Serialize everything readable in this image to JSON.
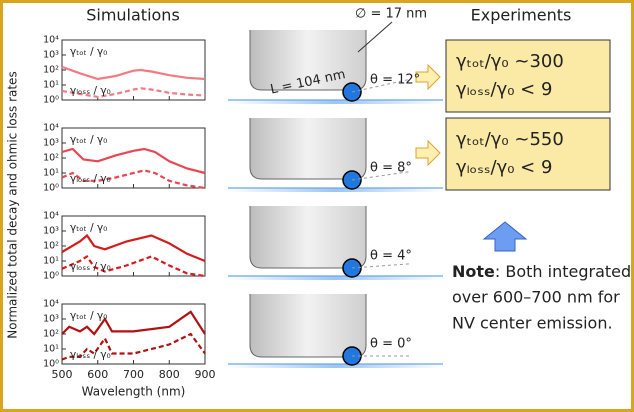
{
  "figure": {
    "left_title": "Simulations",
    "right_title": "Experiments",
    "ylabel": "Normalized total decay and ohmic loss rates"
  },
  "chart_data": [
    {
      "type": "line",
      "log_y": true,
      "xlim": [
        500,
        900
      ],
      "xticks": [
        500,
        600,
        700,
        800,
        900
      ],
      "ylim": [
        1,
        10000
      ],
      "yticks": [
        {
          "value": 1,
          "label": "10⁰"
        },
        {
          "value": 10,
          "label": "10¹"
        },
        {
          "value": 100,
          "label": "10²"
        },
        {
          "value": 1000,
          "label": "10³"
        },
        {
          "value": 10000,
          "label": "10⁴"
        }
      ],
      "x": [
        500,
        550,
        600,
        650,
        700,
        720,
        750,
        800,
        850,
        900
      ],
      "series": [
        {
          "name": "γₜₒₜ / γ₀",
          "color": "#f27a84",
          "linestyle": "solid",
          "values": [
            160,
            60,
            25,
            40,
            90,
            100,
            80,
            45,
            30,
            25
          ]
        },
        {
          "name": "γₗₒₛₛ / γ₀",
          "color": "#f27a84",
          "linestyle": "dashed",
          "values": [
            4,
            2.5,
            1.6,
            2.5,
            5,
            6,
            5,
            3,
            2.3,
            2
          ]
        }
      ]
    },
    {
      "type": "line",
      "log_y": true,
      "xlim": [
        500,
        900
      ],
      "xticks": [
        500,
        600,
        700,
        800,
        900
      ],
      "ylim": [
        1,
        10000
      ],
      "yticks": [
        {
          "value": 1,
          "label": "10⁰"
        },
        {
          "value": 10,
          "label": "10¹"
        },
        {
          "value": 100,
          "label": "10²"
        },
        {
          "value": 1000,
          "label": "10³"
        },
        {
          "value": 10000,
          "label": "10⁴"
        }
      ],
      "x": [
        500,
        530,
        560,
        600,
        650,
        700,
        730,
        760,
        800,
        850,
        900
      ],
      "series": [
        {
          "name": "γₜₒₜ / γ₀",
          "color": "#e84652",
          "linestyle": "solid",
          "values": [
            250,
            400,
            80,
            60,
            150,
            300,
            400,
            250,
            60,
            20,
            10
          ]
        },
        {
          "name": "γₗₒₛₛ / γ₀",
          "color": "#e84652",
          "linestyle": "dashed",
          "values": [
            5,
            10,
            3,
            3,
            5,
            10,
            15,
            10,
            3,
            1.5,
            1
          ]
        }
      ]
    },
    {
      "type": "line",
      "log_y": true,
      "xlim": [
        500,
        900
      ],
      "xticks": [
        500,
        600,
        700,
        800,
        900
      ],
      "ylim": [
        1,
        10000
      ],
      "yticks": [
        {
          "value": 1,
          "label": "10⁰"
        },
        {
          "value": 10,
          "label": "10¹"
        },
        {
          "value": 100,
          "label": "10²"
        },
        {
          "value": 1000,
          "label": "10³"
        },
        {
          "value": 10000,
          "label": "10⁴"
        }
      ],
      "x": [
        500,
        550,
        570,
        590,
        620,
        680,
        750,
        800,
        850,
        900
      ],
      "series": [
        {
          "name": "γₜₒₜ / γ₀",
          "color": "#d41c1c",
          "linestyle": "solid",
          "values": [
            40,
            200,
            500,
            100,
            60,
            200,
            500,
            150,
            30,
            10
          ]
        },
        {
          "name": "γₗₒₛₛ / γ₀",
          "color": "#d41c1c",
          "linestyle": "dashed",
          "values": [
            3,
            10,
            20,
            4,
            2,
            5,
            20,
            5,
            1.5,
            1
          ]
        }
      ]
    },
    {
      "type": "line",
      "log_y": true,
      "xlim": [
        500,
        900
      ],
      "xticks": [
        500,
        600,
        700,
        800,
        900
      ],
      "ylim": [
        1,
        10000
      ],
      "xlabel": "Wavelength (nm)",
      "yticks": [
        {
          "value": 1,
          "label": "10⁰"
        },
        {
          "value": 10,
          "label": "10¹"
        },
        {
          "value": 100,
          "label": "10²"
        },
        {
          "value": 1000,
          "label": "10³"
        },
        {
          "value": 10000,
          "label": "10⁴"
        }
      ],
      "x": [
        500,
        520,
        550,
        570,
        590,
        620,
        640,
        700,
        800,
        860,
        900
      ],
      "series": [
        {
          "name": "γₜₒₜ / γ₀",
          "color": "#b01212",
          "linestyle": "solid",
          "values": [
            100,
            300,
            150,
            300,
            100,
            1000,
            150,
            150,
            300,
            3000,
            100
          ]
        },
        {
          "name": "γₗₒₛₛ / γ₀",
          "color": "#b01212",
          "linestyle": "dashed",
          "values": [
            2,
            3,
            3,
            10,
            5,
            50,
            5,
            5,
            20,
            100,
            5
          ]
        }
      ]
    }
  ],
  "diagrams": {
    "diameter": "∅ = 17 nm",
    "length": "L = 104 nm",
    "angles": [
      "θ = 12°",
      "θ = 8°",
      "θ = 4°",
      "θ = 0°"
    ]
  },
  "experiments": [
    {
      "tot": "γₜₒₜ/γ₀ ~300",
      "loss": "γₗₒₛₛ/γ₀ < 9"
    },
    {
      "tot": "γₜₒₜ/γ₀ ~550",
      "loss": "γₗₒₛₛ/γ₀ < 9"
    }
  ],
  "note": {
    "bold": "Note",
    "lines": [
      ": Both integrated",
      "over 600–700 nm for",
      "NV center emission."
    ]
  }
}
